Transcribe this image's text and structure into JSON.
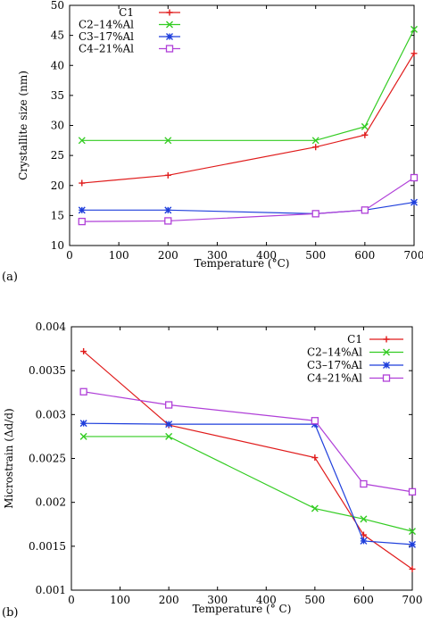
{
  "chart_data": [
    {
      "type": "line",
      "panel_label": "(a)",
      "xlabel": "Temperature (°C)",
      "ylabel": "Crystallite size (nm)",
      "xlim": [
        0,
        700
      ],
      "ylim": [
        10,
        50
      ],
      "xticks": [
        0,
        100,
        200,
        300,
        400,
        500,
        600,
        700
      ],
      "yticks": [
        10,
        15,
        20,
        25,
        30,
        35,
        40,
        45,
        50
      ],
      "tick_precision": 0,
      "legend_position": "top-left",
      "series": [
        {
          "name": "C1",
          "color": "#e01b1b",
          "marker": "plus",
          "x": [
            25,
            200,
            500,
            600,
            700
          ],
          "y": [
            20.4,
            21.7,
            26.4,
            28.4,
            42.0
          ]
        },
        {
          "name": "C2–14%Al",
          "color": "#33cc22",
          "marker": "x",
          "x": [
            25,
            200,
            500,
            600,
            700
          ],
          "y": [
            27.5,
            27.5,
            27.5,
            29.8,
            46.0
          ]
        },
        {
          "name": "C3–17%Al",
          "color": "#1f3fdc",
          "marker": "star",
          "x": [
            25,
            200,
            500,
            600,
            700
          ],
          "y": [
            15.9,
            15.9,
            15.3,
            15.9,
            17.2
          ]
        },
        {
          "name": "C4–21%Al",
          "color": "#b040d8",
          "marker": "square",
          "x": [
            25,
            200,
            500,
            600,
            700
          ],
          "y": [
            14.0,
            14.1,
            15.3,
            15.9,
            21.3
          ]
        }
      ]
    },
    {
      "type": "line",
      "panel_label": "(b)",
      "xlabel": "Temperature (° C)",
      "ylabel": "Microstrain (Δd/d)",
      "xlim": [
        0,
        700
      ],
      "ylim": [
        0.001,
        0.004
      ],
      "xticks": [
        0,
        100,
        200,
        300,
        400,
        500,
        600,
        700
      ],
      "yticks": [
        0.001,
        0.0015,
        0.002,
        0.0025,
        0.003,
        0.0035,
        0.004
      ],
      "ytick_labels": [
        "0.001",
        "0.0015",
        "0.002",
        "0.0025",
        "0.003",
        "0.0035",
        "0.004"
      ],
      "legend_position": "top-right",
      "series": [
        {
          "name": "C1",
          "color": "#e01b1b",
          "marker": "plus",
          "x": [
            25,
            200,
            500,
            600,
            700
          ],
          "y": [
            0.00372,
            0.00288,
            0.00251,
            0.00163,
            0.00124
          ]
        },
        {
          "name": "C2–14%Al",
          "color": "#33cc22",
          "marker": "x",
          "x": [
            25,
            200,
            500,
            600,
            700
          ],
          "y": [
            0.00275,
            0.00275,
            0.00193,
            0.00181,
            0.00167
          ]
        },
        {
          "name": "C3–17%Al",
          "color": "#1f3fdc",
          "marker": "star",
          "x": [
            25,
            200,
            500,
            600,
            700
          ],
          "y": [
            0.0029,
            0.00289,
            0.00289,
            0.00156,
            0.00152
          ]
        },
        {
          "name": "C4–21%Al",
          "color": "#b040d8",
          "marker": "square",
          "x": [
            25,
            200,
            500,
            600,
            700
          ],
          "y": [
            0.00326,
            0.00311,
            0.00293,
            0.00221,
            0.00212
          ]
        }
      ]
    }
  ]
}
